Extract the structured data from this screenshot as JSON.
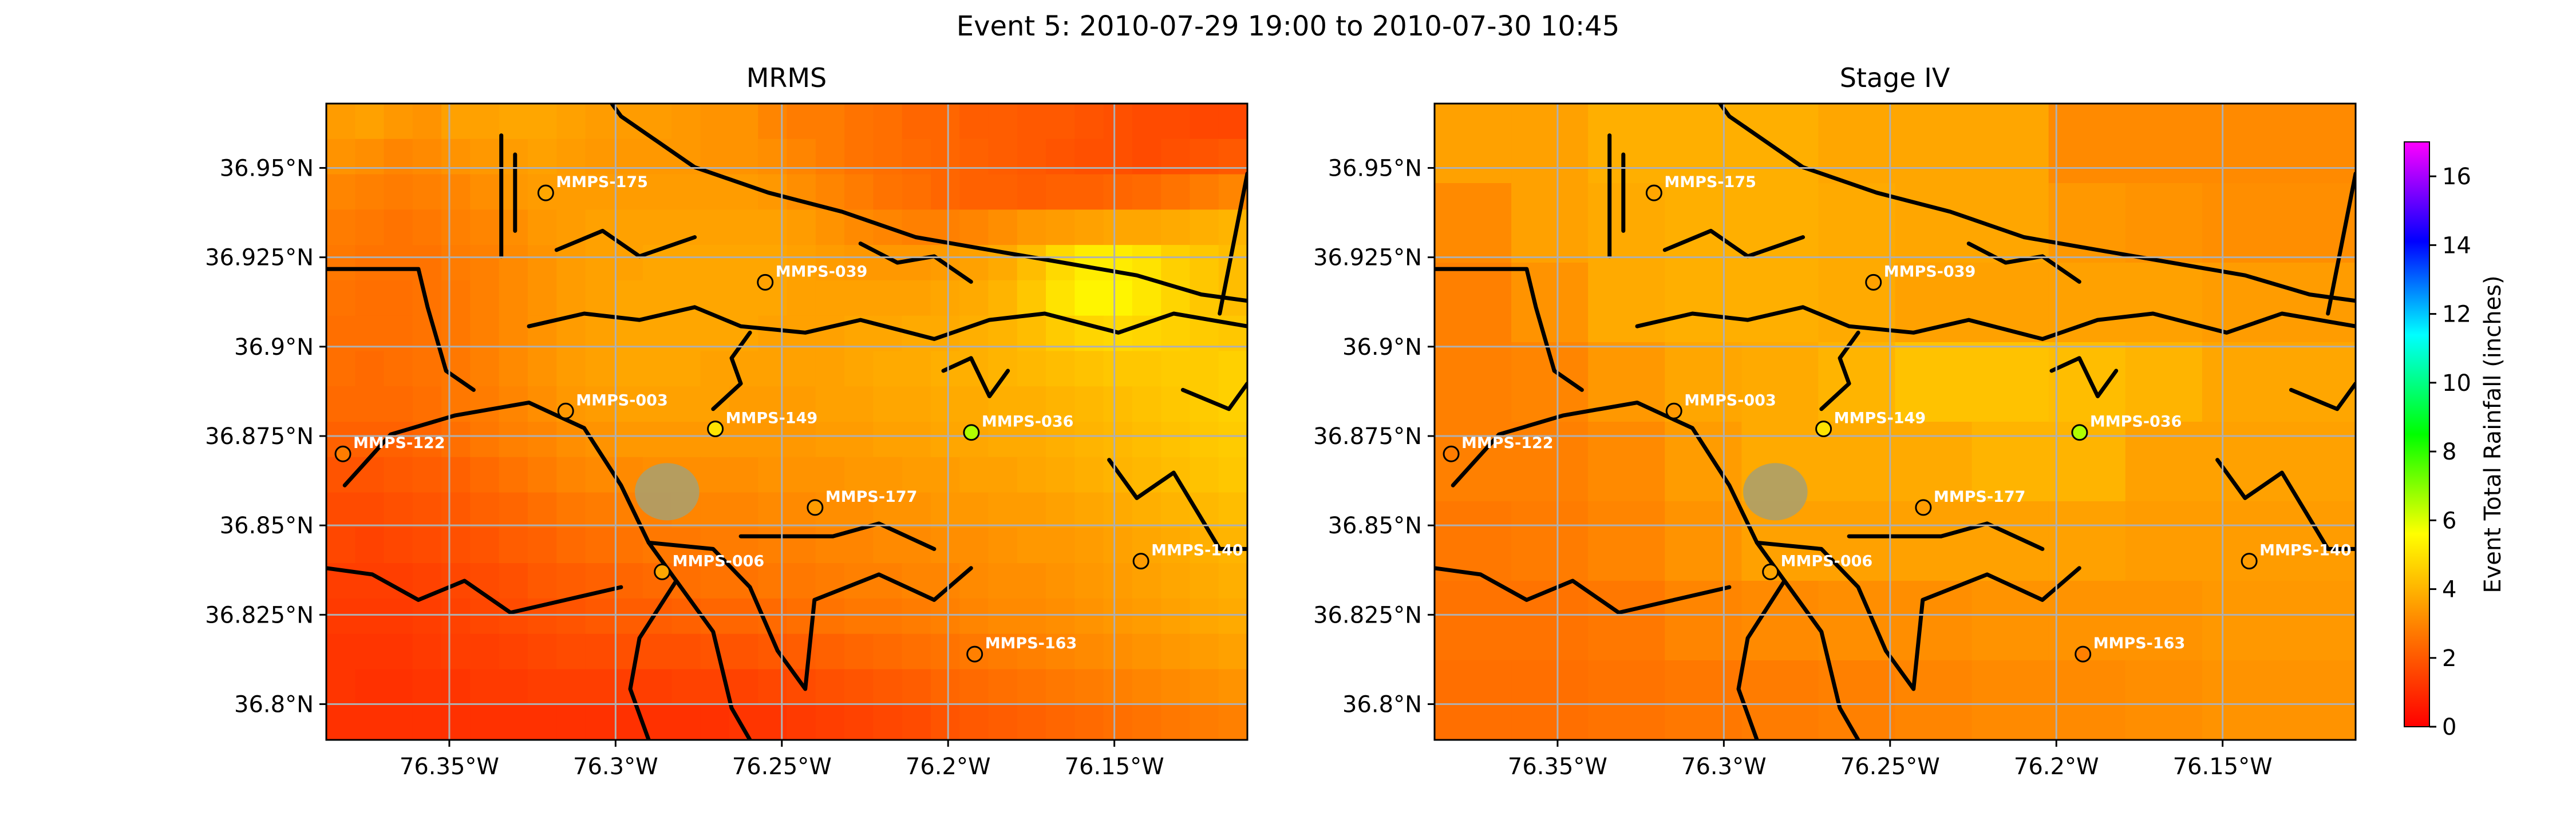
{
  "figure": {
    "suptitle": "Event 5: 2010-07-29 19:00 to 2010-07-30 10:45"
  },
  "maps": [
    {
      "title": "MRMS",
      "grid_estimate_inches": [
        [
          3.5,
          3.6,
          3.4,
          3.3,
          3.6,
          3.6,
          3.7,
          3.7,
          3.6,
          3.5,
          3.5,
          3.5,
          3.4,
          3.3,
          3.3,
          3.0,
          2.8,
          2.8,
          2.6,
          2.5,
          2.3,
          2.3,
          2.1,
          2.1,
          2.0,
          2.0,
          1.9,
          1.8,
          1.7,
          1.7,
          1.6,
          1.6
        ],
        [
          3.3,
          3.2,
          3.0,
          3.1,
          3.3,
          3.4,
          3.5,
          3.6,
          3.5,
          3.4,
          3.4,
          3.4,
          3.4,
          3.3,
          3.3,
          3.2,
          3.0,
          2.8,
          2.6,
          2.5,
          2.4,
          2.3,
          2.2,
          2.1,
          2.0,
          1.9,
          1.8,
          1.8,
          1.7,
          1.8,
          1.9,
          2.0
        ],
        [
          3.0,
          2.9,
          2.8,
          2.9,
          3.0,
          3.2,
          3.4,
          3.5,
          3.5,
          3.5,
          3.5,
          3.5,
          3.5,
          3.5,
          3.5,
          3.4,
          3.2,
          3.0,
          2.8,
          2.6,
          2.5,
          2.3,
          2.2,
          2.2,
          2.1,
          2.2,
          2.2,
          2.3,
          2.4,
          2.6,
          2.8,
          3.0
        ],
        [
          2.8,
          2.7,
          2.6,
          2.7,
          2.9,
          3.0,
          3.2,
          3.4,
          3.5,
          3.6,
          3.6,
          3.6,
          3.6,
          3.6,
          3.6,
          3.6,
          3.5,
          3.3,
          3.1,
          3.0,
          2.9,
          2.9,
          3.0,
          3.2,
          3.4,
          3.5,
          3.6,
          3.7,
          3.7,
          3.8,
          3.9,
          4.0
        ],
        [
          2.7,
          2.6,
          2.6,
          2.6,
          2.8,
          2.9,
          3.1,
          3.3,
          3.5,
          3.6,
          3.6,
          3.7,
          3.7,
          3.7,
          3.7,
          3.7,
          3.6,
          3.5,
          3.4,
          3.4,
          3.4,
          3.5,
          3.6,
          3.8,
          4.2,
          4.8,
          5.2,
          5.2,
          5.0,
          4.6,
          4.4,
          4.2
        ],
        [
          2.6,
          2.5,
          2.5,
          2.6,
          2.7,
          2.9,
          3.1,
          3.3,
          3.5,
          3.6,
          3.7,
          3.7,
          3.7,
          3.7,
          3.7,
          3.7,
          3.6,
          3.6,
          3.6,
          3.6,
          3.6,
          3.7,
          3.8,
          4.0,
          4.4,
          5.0,
          5.4,
          5.4,
          5.1,
          4.7,
          4.4,
          4.2
        ],
        [
          2.5,
          2.5,
          2.5,
          2.6,
          2.7,
          2.9,
          3.1,
          3.3,
          3.5,
          3.6,
          3.7,
          3.7,
          3.7,
          3.7,
          3.7,
          3.6,
          3.6,
          3.6,
          3.7,
          3.7,
          3.8,
          3.8,
          3.9,
          4.0,
          4.2,
          4.5,
          4.7,
          4.8,
          4.7,
          4.6,
          4.5,
          4.4
        ],
        [
          2.5,
          2.4,
          2.5,
          2.6,
          2.7,
          2.9,
          3.1,
          3.3,
          3.5,
          3.6,
          3.7,
          3.7,
          3.7,
          3.6,
          3.6,
          3.6,
          3.6,
          3.6,
          3.7,
          3.8,
          3.8,
          3.9,
          3.9,
          4.0,
          4.1,
          4.2,
          4.3,
          4.4,
          4.4,
          4.5,
          4.5,
          4.6
        ],
        [
          2.4,
          2.4,
          2.4,
          2.5,
          2.7,
          2.8,
          3.0,
          3.2,
          3.4,
          3.5,
          3.6,
          3.6,
          3.6,
          3.6,
          3.5,
          3.5,
          3.5,
          3.6,
          3.6,
          3.7,
          3.7,
          3.8,
          3.8,
          3.9,
          3.9,
          4.0,
          4.1,
          4.2,
          4.3,
          4.4,
          4.5,
          4.6
        ],
        [
          2.2,
          2.2,
          2.2,
          2.3,
          2.5,
          2.7,
          2.9,
          3.0,
          3.2,
          3.3,
          3.4,
          3.4,
          3.4,
          3.4,
          3.4,
          3.4,
          3.4,
          3.5,
          3.5,
          3.6,
          3.6,
          3.7,
          3.7,
          3.8,
          3.8,
          3.9,
          4.0,
          4.1,
          4.2,
          4.3,
          4.4,
          4.5
        ],
        [
          1.9,
          1.9,
          2.0,
          2.1,
          2.2,
          2.4,
          2.6,
          2.8,
          3.0,
          3.1,
          3.1,
          3.2,
          3.2,
          3.2,
          3.2,
          3.3,
          3.3,
          3.3,
          3.4,
          3.4,
          3.5,
          3.5,
          3.6,
          3.6,
          3.7,
          3.8,
          3.9,
          4.0,
          4.1,
          4.2,
          4.3,
          4.4
        ],
        [
          1.7,
          1.7,
          1.8,
          1.9,
          2.0,
          2.2,
          2.3,
          2.5,
          2.7,
          2.8,
          2.9,
          2.9,
          3.0,
          3.0,
          3.0,
          3.1,
          3.1,
          3.2,
          3.2,
          3.3,
          3.3,
          3.4,
          3.4,
          3.5,
          3.5,
          3.6,
          3.7,
          3.8,
          3.9,
          4.0,
          4.1,
          4.2
        ],
        [
          1.6,
          1.5,
          1.6,
          1.7,
          1.8,
          1.9,
          2.1,
          2.2,
          2.4,
          2.5,
          2.6,
          2.7,
          2.7,
          2.8,
          2.8,
          2.9,
          2.9,
          3.0,
          3.0,
          3.1,
          3.1,
          3.2,
          3.2,
          3.3,
          3.4,
          3.4,
          3.5,
          3.6,
          3.7,
          3.8,
          3.9,
          4.0
        ],
        [
          1.4,
          1.4,
          1.4,
          1.5,
          1.6,
          1.7,
          1.8,
          2.0,
          2.1,
          2.2,
          2.3,
          2.4,
          2.5,
          2.6,
          2.6,
          2.7,
          2.7,
          2.8,
          2.9,
          2.9,
          3.0,
          3.0,
          3.1,
          3.2,
          3.2,
          3.3,
          3.4,
          3.5,
          3.6,
          3.7,
          3.8,
          3.9
        ],
        [
          1.3,
          1.3,
          1.3,
          1.4,
          1.5,
          1.6,
          1.7,
          1.8,
          1.9,
          2.0,
          2.1,
          2.1,
          2.2,
          2.3,
          2.3,
          2.4,
          2.5,
          2.6,
          2.7,
          2.7,
          2.8,
          2.9,
          3.0,
          3.1,
          3.1,
          3.2,
          3.3,
          3.4,
          3.5,
          3.6,
          3.7,
          3.8
        ],
        [
          1.2,
          1.2,
          1.2,
          1.3,
          1.4,
          1.4,
          1.5,
          1.6,
          1.7,
          1.7,
          1.8,
          1.8,
          1.8,
          1.9,
          1.9,
          2.0,
          2.1,
          2.2,
          2.3,
          2.4,
          2.5,
          2.6,
          2.7,
          2.8,
          2.9,
          3.0,
          3.1,
          3.2,
          3.3,
          3.4,
          3.5,
          3.6
        ],
        [
          1.2,
          1.1,
          1.1,
          1.2,
          1.2,
          1.3,
          1.3,
          1.4,
          1.4,
          1.4,
          1.4,
          1.4,
          1.5,
          1.5,
          1.5,
          1.6,
          1.7,
          1.8,
          1.9,
          2.0,
          2.1,
          2.3,
          2.4,
          2.5,
          2.6,
          2.7,
          2.8,
          2.9,
          3.0,
          3.1,
          3.2,
          3.3
        ],
        [
          1.1,
          1.1,
          1.1,
          1.1,
          1.1,
          1.1,
          1.1,
          1.1,
          1.1,
          1.1,
          1.1,
          1.1,
          1.1,
          1.1,
          1.2,
          1.2,
          1.3,
          1.4,
          1.5,
          1.6,
          1.7,
          1.9,
          2.0,
          2.1,
          2.2,
          2.3,
          2.4,
          2.5,
          2.6,
          2.7,
          2.8,
          2.9
        ]
      ]
    },
    {
      "title": "Stage IV",
      "grid_estimate_inches": [
        [
          3.6,
          3.6,
          3.9,
          3.9,
          3.9,
          3.7,
          3.7,
          3.7,
          3.1,
          3.1,
          3.1,
          3.1
        ],
        [
          3.1,
          3.6,
          3.8,
          3.9,
          3.9,
          3.8,
          3.7,
          3.7,
          3.4,
          3.3,
          3.2,
          3.2
        ],
        [
          2.9,
          3.3,
          3.8,
          3.9,
          3.9,
          3.8,
          3.6,
          3.6,
          3.6,
          3.6,
          3.5,
          3.5
        ],
        [
          2.9,
          3.0,
          3.4,
          3.7,
          3.8,
          4.0,
          4.3,
          4.3,
          4.2,
          4.0,
          3.7,
          3.7
        ],
        [
          2.9,
          2.9,
          3.1,
          3.5,
          3.8,
          3.8,
          3.8,
          4.0,
          4.0,
          3.6,
          3.6,
          3.6
        ],
        [
          2.7,
          2.8,
          3.0,
          3.3,
          3.6,
          3.6,
          3.6,
          3.6,
          3.6,
          3.5,
          3.5,
          3.5
        ],
        [
          2.6,
          2.6,
          2.7,
          3.0,
          3.1,
          3.2,
          3.2,
          3.3,
          3.3,
          3.3,
          3.4,
          3.4
        ],
        [
          2.5,
          2.5,
          2.6,
          2.7,
          2.8,
          2.9,
          3.0,
          3.1,
          3.1,
          3.2,
          3.3,
          3.3
        ]
      ]
    }
  ],
  "axes": {
    "lat_ticks": [
      "36.95°N",
      "36.925°N",
      "36.9°N",
      "36.875°N",
      "36.85°N",
      "36.825°N",
      "36.8°N"
    ],
    "lon_ticks": [
      "76.35°W",
      "76.3°W",
      "76.25°W",
      "76.2°W",
      "76.15°W"
    ]
  },
  "gauges": [
    {
      "label": "MMPS-175",
      "lon": -76.321,
      "lat": 36.943,
      "value_inches": 3.7
    },
    {
      "label": "MMPS-039",
      "lon": -76.255,
      "lat": 36.918,
      "value_inches": 3.6
    },
    {
      "label": "MMPS-003",
      "lon": -76.315,
      "lat": 36.882,
      "value_inches": 3.4
    },
    {
      "label": "MMPS-149",
      "lon": -76.27,
      "lat": 36.877,
      "value_inches": 5.0
    },
    {
      "label": "MMPS-036",
      "lon": -76.193,
      "lat": 36.876,
      "value_inches": 6.5
    },
    {
      "label": "MMPS-122",
      "lon": -76.382,
      "lat": 36.87,
      "value_inches": 2.8
    },
    {
      "label": "MMPS-177",
      "lon": -76.24,
      "lat": 36.855,
      "value_inches": 3.5
    },
    {
      "label": "MMPS-140",
      "lon": -76.142,
      "lat": 36.84,
      "value_inches": 3.5
    },
    {
      "label": "MMPS-006",
      "lon": -76.286,
      "lat": 36.837,
      "value_inches": 3.7
    },
    {
      "label": "MMPS-163",
      "lon": -76.192,
      "lat": 36.814,
      "value_inches": 2.9
    }
  ],
  "colorbar": {
    "label": "Event Total Rainfall (inches)",
    "min": 0,
    "max": 17,
    "ticks": [
      "0",
      "2",
      "4",
      "6",
      "8",
      "10",
      "12",
      "14",
      "16"
    ]
  }
}
